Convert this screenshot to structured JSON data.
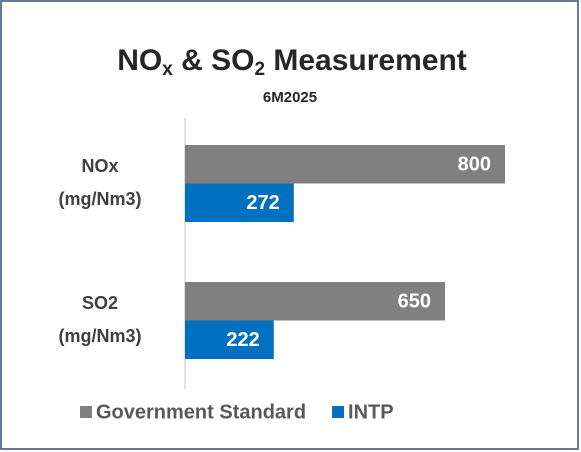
{
  "chart_data": {
    "type": "hbar",
    "title": [
      {
        "text": "NO"
      },
      {
        "text": "x",
        "sub": true
      },
      {
        "text": " & SO"
      },
      {
        "text": "2",
        "sub": true
      },
      {
        "text": " Measurement"
      }
    ],
    "subtitle": "6M2025",
    "categories": [
      [
        "NOx",
        "(mg/Nm3)"
      ],
      [
        "SO2",
        "(mg/Nm3)"
      ]
    ],
    "series": [
      {
        "name": "Government Standard",
        "color": "#808080",
        "values": [
          800,
          650
        ]
      },
      {
        "name": "INTP",
        "color": "#0070c0",
        "values": [
          272,
          222
        ]
      }
    ],
    "xlim": [
      0,
      900
    ],
    "legend": "bottom"
  }
}
